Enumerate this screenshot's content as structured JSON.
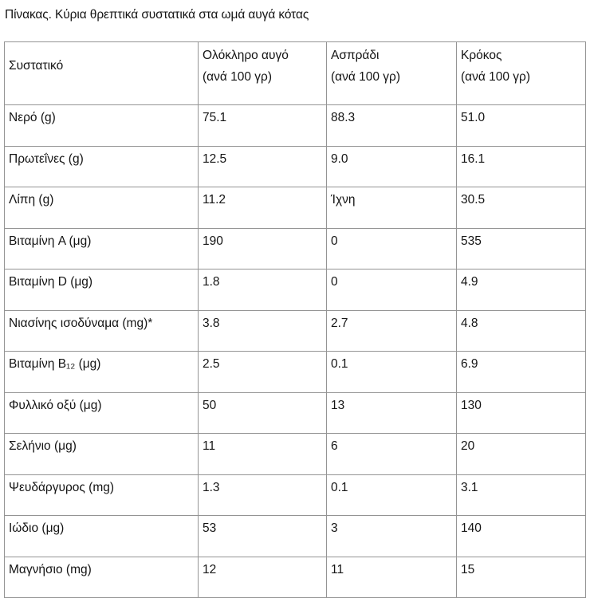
{
  "caption": "Πίνακας. Κύρια θρεπτικά συστατικά στα ωμά αυγά κότας",
  "table": {
    "columns": [
      {
        "label": "Συστατικό",
        "sublabel": ""
      },
      {
        "label": "Ολόκληρο αυγό",
        "sublabel": "(ανά 100 γρ)"
      },
      {
        "label": "Ασπράδι",
        "sublabel": "(ανά 100 γρ)"
      },
      {
        "label": "Κρόκος",
        "sublabel": "(ανά 100 γρ)"
      }
    ],
    "rows": [
      {
        "label": "Νερό (g)",
        "whole_egg": "75.1",
        "egg_white": "88.3",
        "yolk": "51.0"
      },
      {
        "label": "Πρωτεΐνες (g)",
        "whole_egg": "12.5",
        "egg_white": "9.0",
        "yolk": "16.1"
      },
      {
        "label": "Λίπη (g)",
        "whole_egg": "11.2",
        "egg_white": "Ίχνη",
        "yolk": "30.5"
      },
      {
        "label": "Βιταμίνη A (μg)",
        "whole_egg": "190",
        "egg_white": "0",
        "yolk": "535"
      },
      {
        "label": "Βιταμίνη D (μg)",
        "whole_egg": "1.8",
        "egg_white": "0",
        "yolk": "4.9"
      },
      {
        "label": "Νιασίνης ισοδύναμα (mg)*",
        "whole_egg": "3.8",
        "egg_white": "2.7",
        "yolk": "4.8"
      },
      {
        "label": "Βιταμίνη B₁₂ (μg)",
        "whole_egg": "2.5",
        "egg_white": "0.1",
        "yolk": "6.9"
      },
      {
        "label": "Φυλλικό οξύ (μg)",
        "whole_egg": "50",
        "egg_white": "13",
        "yolk": "130"
      },
      {
        "label": "Σελήνιο (μg)",
        "whole_egg": "11",
        "egg_white": "6",
        "yolk": "20"
      },
      {
        "label": "Ψευδάργυρος (mg)",
        "whole_egg": "1.3",
        "egg_white": "0.1",
        "yolk": "3.1"
      },
      {
        "label": "Ιώδιο (μg)",
        "whole_egg": "53",
        "egg_white": "3",
        "yolk": "140"
      },
      {
        "label": "Μαγνήσιο (mg)",
        "whole_egg": "12",
        "egg_white": "11",
        "yolk": "15"
      }
    ]
  },
  "colors": {
    "border": "#949494",
    "text": "#141414",
    "background": "#ffffff"
  }
}
